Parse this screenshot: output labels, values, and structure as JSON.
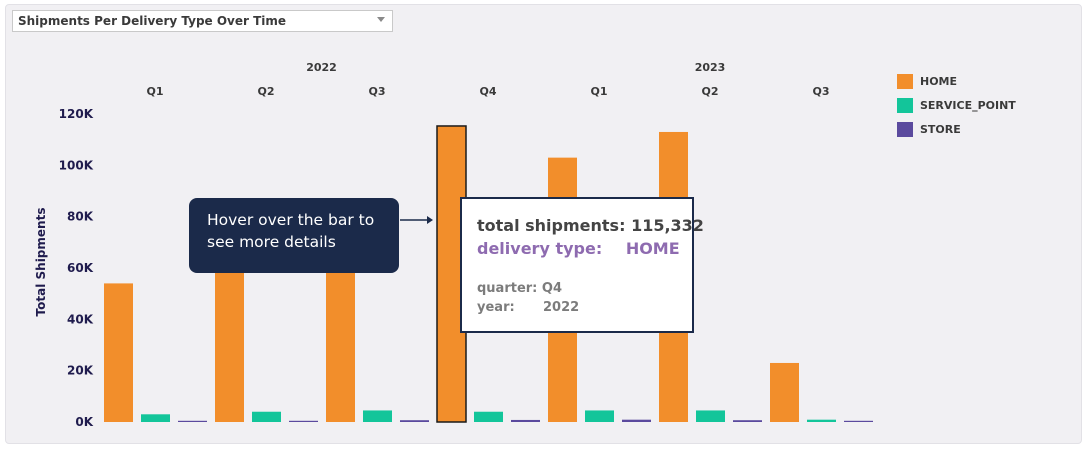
{
  "dropdown": {
    "selected": "Shipments Per Delivery Type Over Time"
  },
  "callout": {
    "text": "Hover over the bar to see more details"
  },
  "tooltip": {
    "total_label": "total shipments:",
    "total_value": "115,332",
    "type_label": "delivery type:",
    "type_value": "HOME",
    "quarter_label": "quarter:",
    "quarter_value": "Q4",
    "year_label": "year:",
    "year_value": "2022"
  },
  "colors": {
    "home": "#f28e2b",
    "service_point": "#13c59a",
    "store": "#5b4a9e",
    "highlight_outline": "#1a1a1a",
    "tooltip_accent": "#8e6bb0",
    "tooltip_text": "#444444"
  },
  "chart_data": {
    "type": "bar",
    "ylabel": "Total Shipments",
    "ylim": [
      0,
      120000
    ],
    "yticks": [
      0,
      20000,
      40000,
      60000,
      80000,
      100000,
      120000
    ],
    "ytick_labels": [
      "0K",
      "20K",
      "40K",
      "60K",
      "80K",
      "100K",
      "120K"
    ],
    "year_labels": [
      {
        "label": "2022",
        "from": 0,
        "to": 3
      },
      {
        "label": "2023",
        "from": 4,
        "to": 6
      }
    ],
    "categories": [
      "Q1",
      "Q2",
      "Q3",
      "Q4",
      "Q1",
      "Q2",
      "Q3"
    ],
    "series": [
      {
        "name": "HOME",
        "values": [
          54000,
          61000,
          61000,
          115332,
          103000,
          113000,
          23000
        ]
      },
      {
        "name": "SERVICE_POINT",
        "values": [
          3000,
          4000,
          4500,
          4000,
          4500,
          4500,
          900
        ]
      },
      {
        "name": "STORE",
        "values": [
          300,
          400,
          700,
          800,
          900,
          700,
          300
        ]
      }
    ],
    "highlighted": {
      "series": 0,
      "index": 3
    },
    "grid": false,
    "legend": "top-right"
  }
}
